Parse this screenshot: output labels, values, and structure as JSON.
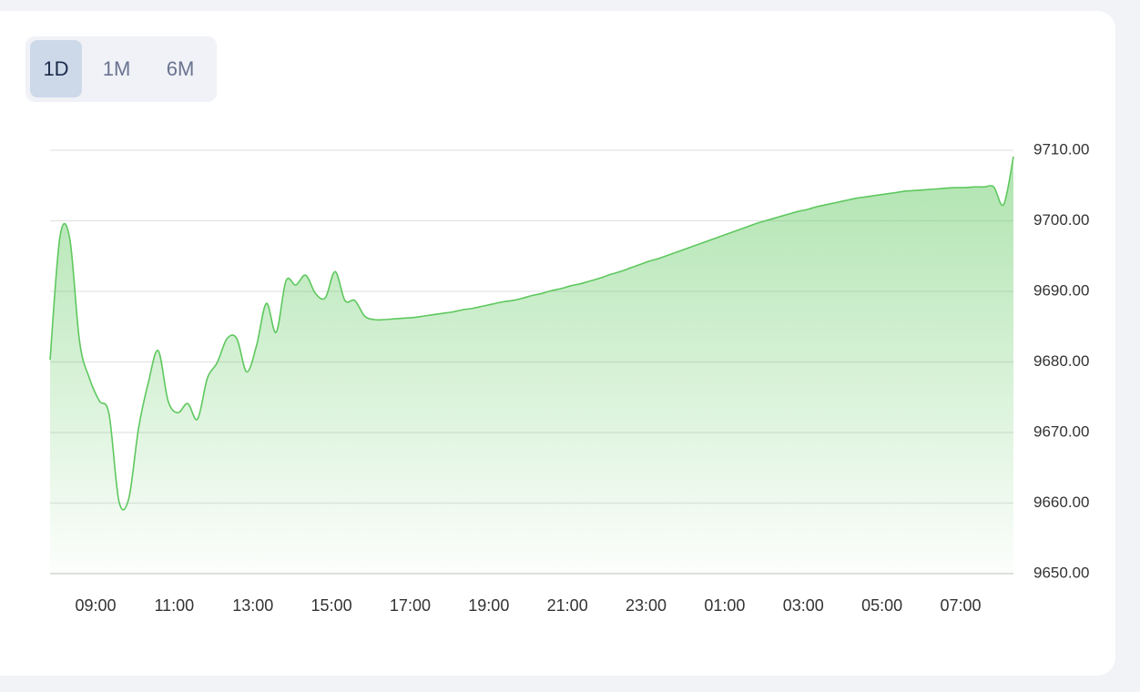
{
  "tabs": [
    {
      "label": "1D",
      "selected": true
    },
    {
      "label": "1M",
      "selected": false
    },
    {
      "label": "6M",
      "selected": false
    }
  ],
  "chart_data": {
    "type": "area",
    "color": "#5ec85e",
    "grid": true,
    "categories": [
      null,
      null,
      null,
      null,
      null,
      "09:00",
      null,
      null,
      null,
      null,
      null,
      null,
      null,
      "11:00",
      null,
      null,
      null,
      null,
      null,
      null,
      null,
      "13:00",
      null,
      null,
      null,
      null,
      null,
      null,
      null,
      "15:00",
      null,
      null,
      null,
      null,
      null,
      null,
      null,
      "17:00",
      null,
      null,
      null,
      null,
      null,
      null,
      null,
      "19:00",
      null,
      null,
      null,
      null,
      null,
      null,
      null,
      "21:00",
      null,
      null,
      null,
      null,
      null,
      null,
      null,
      "23:00",
      null,
      null,
      null,
      null,
      null,
      null,
      null,
      "01:00",
      null,
      null,
      null,
      null,
      null,
      null,
      null,
      "03:00",
      null,
      null,
      null,
      null,
      null,
      null,
      null,
      "05:00",
      null,
      null,
      null,
      null,
      null,
      null,
      null,
      "07:00",
      null,
      null,
      null,
      null,
      null
    ],
    "values": [
      9680.3,
      9697.7,
      9697.5,
      9682.9,
      9677.7,
      9674.5,
      9672.6,
      9660.3,
      9660.6,
      9670.6,
      9677.1,
      9681.6,
      9674.5,
      9672.8,
      9674.1,
      9671.9,
      9677.7,
      9679.9,
      9683.3,
      9683.3,
      9678.6,
      9682.3,
      9688.3,
      9684.2,
      9691.5,
      9690.9,
      9692.3,
      9689.7,
      9689.1,
      9692.8,
      9688.7,
      9688.7,
      9686.5,
      9686.0,
      9686.0,
      9686.1,
      9686.2,
      9686.3,
      9686.5,
      9686.7,
      9686.9,
      9687.1,
      9687.4,
      9687.6,
      9687.9,
      9688.2,
      9688.5,
      9688.7,
      9689.0,
      9689.4,
      9689.7,
      9690.1,
      9690.4,
      9690.8,
      9691.1,
      9691.5,
      9691.9,
      9692.4,
      9692.8,
      9693.3,
      9693.8,
      9694.3,
      9694.7,
      9695.2,
      9695.7,
      9696.2,
      9696.7,
      9697.2,
      9697.7,
      9698.2,
      9698.7,
      9699.2,
      9699.7,
      9700.1,
      9700.5,
      9700.9,
      9701.3,
      9701.6,
      9702.0,
      9702.3,
      9702.6,
      9702.9,
      9703.2,
      9703.4,
      9703.6,
      9703.8,
      9704.0,
      9704.2,
      9704.3,
      9704.4,
      9704.5,
      9704.6,
      9704.7,
      9704.7,
      9704.8,
      9704.8,
      9704.8,
      9702.3,
      9709.1
    ],
    "ylim": [
      9650,
      9710
    ],
    "yticks": [
      {
        "value": 9650,
        "label": "9650.00"
      },
      {
        "value": 9660,
        "label": "9660.00"
      },
      {
        "value": 9670,
        "label": "9670.00"
      },
      {
        "value": 9680,
        "label": "9680.00"
      },
      {
        "value": 9690,
        "label": "9690.00"
      },
      {
        "value": 9700,
        "label": "9700.00"
      },
      {
        "value": 9710,
        "label": "9710.00"
      }
    ]
  }
}
